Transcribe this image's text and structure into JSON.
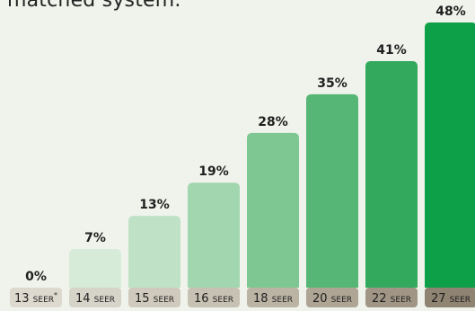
{
  "header": {
    "text": "matched system."
  },
  "chart_data": {
    "type": "bar",
    "title": "",
    "xlabel": "",
    "ylabel": "",
    "ylim": [
      0,
      48
    ],
    "categories": [
      {
        "num": "13",
        "unit": "SEER",
        "mark": "*"
      },
      {
        "num": "14",
        "unit": "SEER",
        "mark": ""
      },
      {
        "num": "15",
        "unit": "SEER",
        "mark": ""
      },
      {
        "num": "16",
        "unit": "SEER",
        "mark": ""
      },
      {
        "num": "18",
        "unit": "SEER",
        "mark": ""
      },
      {
        "num": "20",
        "unit": "SEER",
        "mark": ""
      },
      {
        "num": "22",
        "unit": "SEER",
        "mark": ""
      },
      {
        "num": "27",
        "unit": "SEER",
        "mark": ""
      }
    ],
    "values": [
      0,
      7,
      13,
      19,
      28,
      35,
      41,
      48
    ],
    "value_labels": [
      "0%",
      "7%",
      "13%",
      "19%",
      "28%",
      "35%",
      "41%",
      "48%"
    ],
    "colors": {
      "bars": [
        "#e7efe1",
        "#d6ebd8",
        "#bfe2c7",
        "#a2d6ae",
        "#7fc792",
        "#55b676",
        "#33a95d",
        "#0ea048"
      ],
      "tabs": [
        "#ddd9cf",
        "#d6d3c8",
        "#cfcabd",
        "#c7c1b3",
        "#bbb4a5",
        "#aea595",
        "#a19685",
        "#8f8372"
      ]
    }
  }
}
